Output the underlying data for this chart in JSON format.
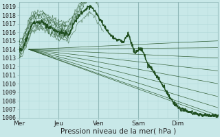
{
  "bg_color": "#c8e8e8",
  "grid_color_minor": "#b0d8d8",
  "grid_color_major": "#90b8b8",
  "line_color": "#1e4d1e",
  "ylabel": "Pression niveau de la mer( hPa )",
  "ylim": [
    1006,
    1019.5
  ],
  "yticks": [
    1006,
    1007,
    1008,
    1009,
    1010,
    1011,
    1012,
    1013,
    1014,
    1015,
    1016,
    1017,
    1018,
    1019
  ],
  "day_labels": [
    "Mer",
    "Jeu",
    "Ven",
    "Sam",
    "Dim"
  ],
  "day_positions": [
    0,
    24,
    48,
    72,
    96
  ],
  "xlim": [
    0,
    120
  ],
  "axis_fontsize": 7,
  "tick_fontsize": 6,
  "label_fontsize": 7.5
}
